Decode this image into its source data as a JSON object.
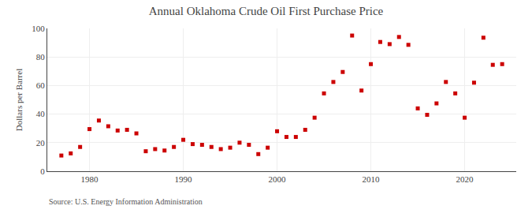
{
  "chart_data": {
    "type": "scatter",
    "title": "Annual Oklahoma Crude Oil First Purchase Price",
    "ylabel": "Dollars per Barrel",
    "annotations": [
      "Source: U.S. Energy Information Administration"
    ],
    "x": [
      1977,
      1978,
      1979,
      1980,
      1981,
      1982,
      1983,
      1984,
      1985,
      1986,
      1987,
      1988,
      1989,
      1990,
      1991,
      1992,
      1993,
      1994,
      1995,
      1996,
      1997,
      1998,
      1999,
      2000,
      2001,
      2002,
      2003,
      2004,
      2005,
      2006,
      2007,
      2008,
      2009,
      2010,
      2011,
      2012,
      2013,
      2014,
      2015,
      2016,
      2017,
      2018,
      2019,
      2020,
      2021,
      2022,
      2023,
      2024
    ],
    "values": [
      11.0,
      12.5,
      17.0,
      29.5,
      35.5,
      31.5,
      28.5,
      29.0,
      26.5,
      14.0,
      15.5,
      14.5,
      17.0,
      22.0,
      19.0,
      18.5,
      17.0,
      15.5,
      16.5,
      20.0,
      18.5,
      12.0,
      16.5,
      28.0,
      24.0,
      24.0,
      29.0,
      37.5,
      54.5,
      62.5,
      69.5,
      95.0,
      56.5,
      75.0,
      90.5,
      89.0,
      94.0,
      88.5,
      44.0,
      39.5,
      47.5,
      62.5,
      54.5,
      37.5,
      62.0,
      93.5,
      74.5,
      75.0
    ],
    "color": "#cc0000",
    "marker": "square",
    "xlim": [
      1975.5,
      2025.5
    ],
    "ylim": [
      0,
      100
    ],
    "xticks": [
      1980,
      1990,
      2000,
      2010,
      2020
    ],
    "yticks": [
      0,
      20,
      40,
      60,
      80,
      100
    ],
    "grid": true
  }
}
